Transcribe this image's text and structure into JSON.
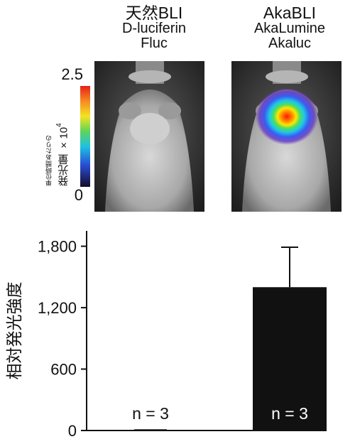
{
  "panels": [
    {
      "title": "天然BLI",
      "substrate": "D-luciferin",
      "enzyme": "Fluc"
    },
    {
      "title": "AkaBLI",
      "substrate": "AkaLumine",
      "enzyme": "Akaluc"
    }
  ],
  "colorbar": {
    "max_label": "2.5",
    "min_label": "0",
    "caption_small": "単位時間あたりの",
    "caption_big": "発光量",
    "multiplier": "×10",
    "exponent": "4"
  },
  "chart_data": {
    "type": "bar",
    "categories": [
      "天然BLI",
      "AkaBLI"
    ],
    "values": [
      12,
      1400
    ],
    "error_upper": [
      0,
      1790
    ],
    "ylabel": "相対発光強度",
    "ylim": [
      0,
      1950
    ],
    "yticks": [
      0,
      600,
      1200,
      1800
    ],
    "ytick_labels": [
      "0",
      "600",
      "1,200",
      "1,800"
    ],
    "bar_labels": [
      "n = 3",
      "n = 3"
    ],
    "bar_color": "#111111"
  }
}
